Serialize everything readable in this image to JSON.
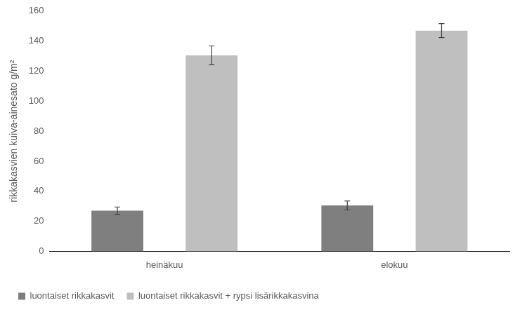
{
  "chart_data": {
    "type": "bar",
    "y_label": "rikkakasvien kuiva-ainesato g/m²",
    "categories": [
      "heinäkuu",
      "elokuu"
    ],
    "series": [
      {
        "name": "luontaiset rikkakasvit",
        "color": "#7f7f7f",
        "values": [
          27,
          30.5
        ],
        "errors": [
          2.5,
          3
        ]
      },
      {
        "name": "luontaiset rikkakasvit + rypsi lisärikkakasvina",
        "color": "#bfbfbf",
        "values": [
          130.5,
          147
        ],
        "errors": [
          6.3,
          4.7
        ]
      }
    ],
    "ylim": [
      0,
      160
    ],
    "yticks": [
      0,
      20,
      40,
      60,
      80,
      100,
      120,
      140,
      160
    ],
    "grid": false,
    "legend": "bottom"
  }
}
